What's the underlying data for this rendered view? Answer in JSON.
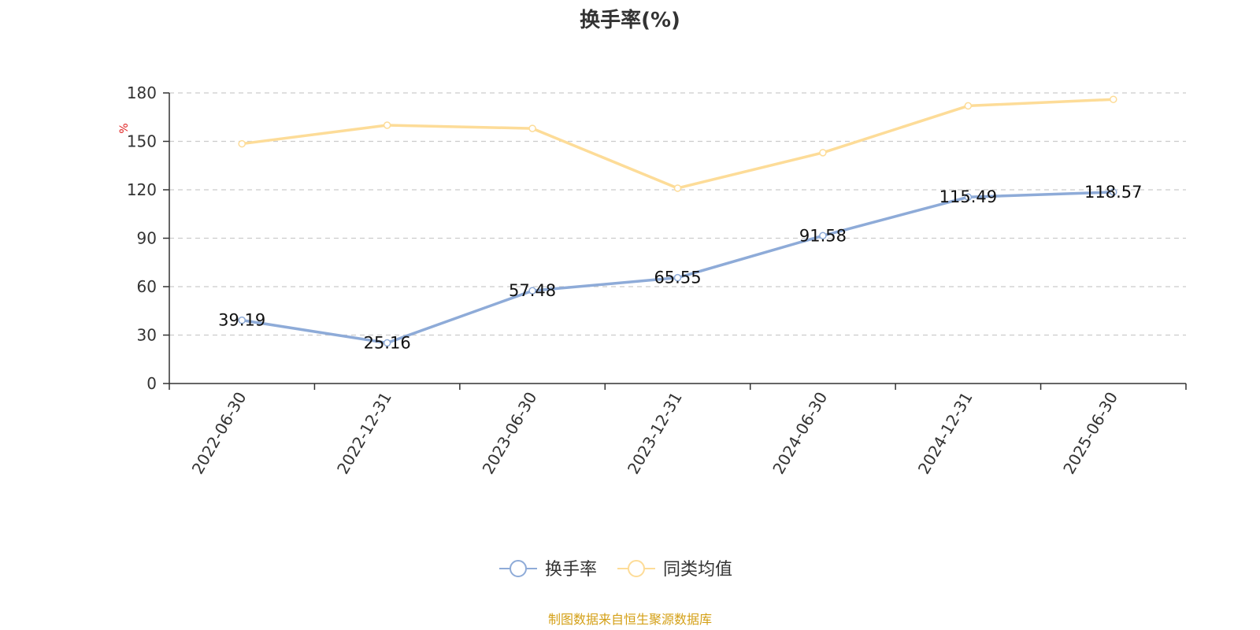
{
  "chart_data": {
    "type": "line",
    "title": "换手率(%)",
    "ylabel": "%",
    "xlabel": "",
    "categories": [
      "2022-06-30",
      "2022-12-31",
      "2023-06-30",
      "2023-12-31",
      "2024-06-30",
      "2024-12-31",
      "2025-06-30"
    ],
    "ylim": [
      0,
      180
    ],
    "yticks": [
      "0",
      "30",
      "60",
      "90",
      "120",
      "150",
      "180"
    ],
    "grid": true,
    "legend_position": "bottom-center",
    "series": [
      {
        "name": "换手率",
        "color": "#8eabd8",
        "labels_shown": true,
        "values": [
          39.19,
          25.16,
          57.48,
          65.55,
          91.58,
          115.49,
          118.57
        ],
        "labels": [
          "39.19",
          "25.16",
          "57.48",
          "65.55",
          "91.58",
          "115.49",
          "118.57"
        ]
      },
      {
        "name": "同类均值",
        "color": "#fddc98",
        "labels_shown": false,
        "values": [
          148.5,
          160.0,
          158.0,
          121.0,
          143.0,
          172.0,
          176.0
        ]
      }
    ],
    "source": "制图数据来自恒生聚源数据库",
    "colors": {
      "axis": "#333333",
      "grid": "#cccccc",
      "unit": "#e02020",
      "source": "#d4a017"
    }
  }
}
